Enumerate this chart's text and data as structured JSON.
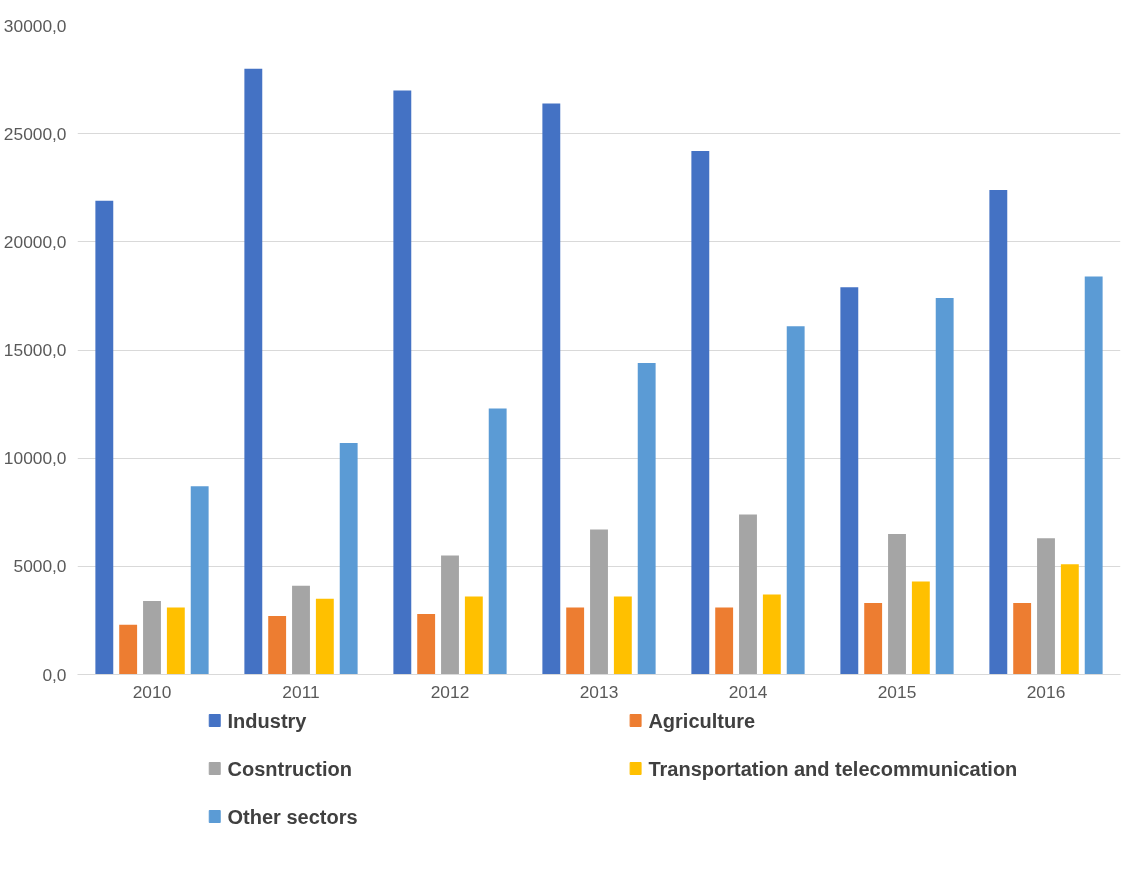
{
  "chart_data": {
    "type": "bar",
    "categories": [
      "2010",
      "2011",
      "2012",
      "2013",
      "2014",
      "2015",
      "2016"
    ],
    "series": [
      {
        "name": "Industry",
        "color": "#4472c4",
        "values": [
          21900,
          28000,
          27000,
          26400,
          24200,
          17900,
          22400
        ]
      },
      {
        "name": "Agriculture",
        "color": "#ed7d31",
        "values": [
          2300,
          2700,
          2800,
          3100,
          3100,
          3300,
          3300
        ]
      },
      {
        "name": "Cosntruction",
        "color": "#a5a5a5",
        "values": [
          3400,
          4100,
          5500,
          6700,
          7400,
          6500,
          6300
        ]
      },
      {
        "name": "Transportation and telecommunication",
        "color": "#ffc000",
        "values": [
          3100,
          3500,
          3600,
          3600,
          3700,
          4300,
          5100
        ]
      },
      {
        "name": "Other sectors",
        "color": "#5b9bd5",
        "values": [
          8700,
          10700,
          12300,
          14400,
          16100,
          17400,
          18400
        ]
      }
    ],
    "ylim": [
      0,
      30000
    ],
    "yticks": [
      {
        "value": 0,
        "label": "0,0"
      },
      {
        "value": 5000,
        "label": "5000,0"
      },
      {
        "value": 10000,
        "label": "10000,0"
      },
      {
        "value": 15000,
        "label": "15000,0"
      },
      {
        "value": 20000,
        "label": "20000,0"
      },
      {
        "value": 25000,
        "label": "25000,0"
      },
      {
        "value": 30000,
        "label": "30000,0"
      }
    ],
    "grid": "y",
    "legend": "bottom"
  }
}
